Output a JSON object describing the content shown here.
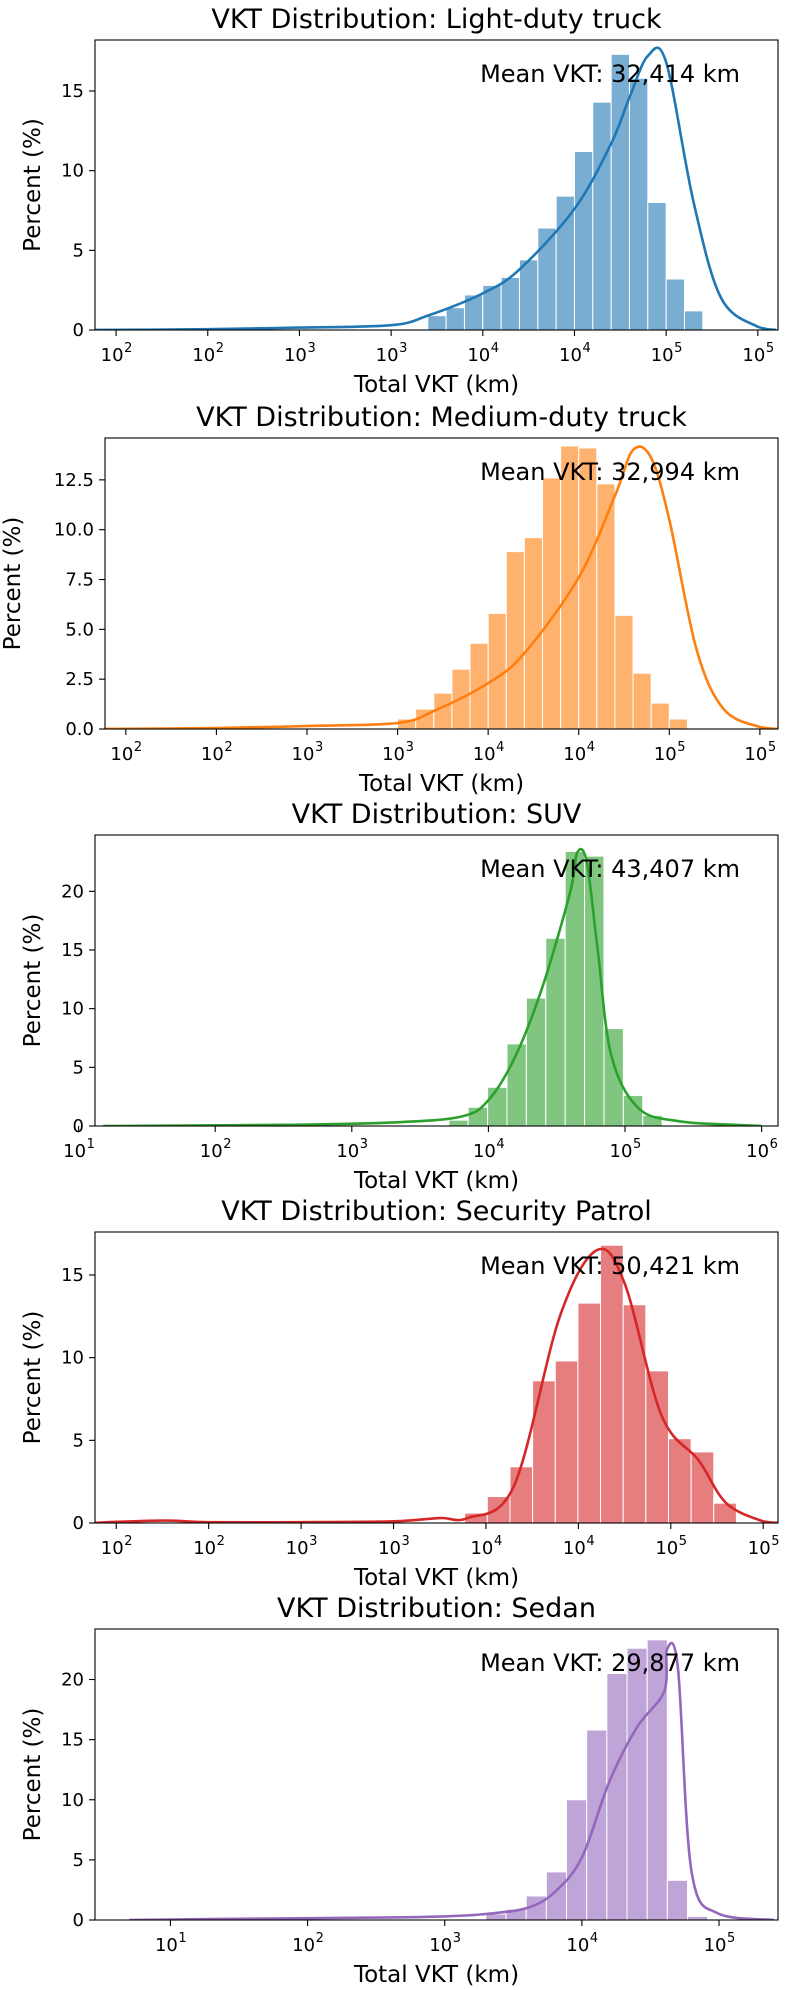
{
  "chart_data": [
    {
      "type": "bar",
      "title": "VKT Distribution: Light-duty truck",
      "xlabel": "Total VKT (km)",
      "ylabel": "Percent (%)",
      "annotation": "Mean VKT: 32,414 km",
      "color": "#1f77b4",
      "xlim": [
        -0.23,
        7.22
      ],
      "ylim": [
        0,
        18.2
      ],
      "yticks": [
        "0",
        "5",
        "10",
        "15"
      ],
      "ytick_values": [
        0,
        5,
        10,
        15
      ],
      "xticks": [
        {
          "base": "10",
          "exp": "2"
        },
        {
          "base": "10",
          "exp": "2"
        },
        {
          "base": "10",
          "exp": "3"
        },
        {
          "base": "10",
          "exp": "3"
        },
        {
          "base": "10",
          "exp": "4"
        },
        {
          "base": "10",
          "exp": "4"
        },
        {
          "base": "10",
          "exp": "5"
        },
        {
          "base": "10",
          "exp": "5"
        }
      ],
      "xtick_positions": [
        0,
        1,
        2,
        3,
        4,
        5,
        6,
        7
      ],
      "bins_start": 3.4,
      "bin_width": 0.2,
      "values": [
        0.9,
        1.4,
        2.2,
        2.8,
        3.3,
        4.4,
        6.4,
        8.4,
        11.2,
        14.3,
        17.3,
        15.8,
        8.0,
        3.2,
        1.2
      ],
      "kde_x": [
        -0.3,
        1,
        2,
        3,
        3.4,
        4,
        4.4,
        5,
        5.4,
        5.6,
        5.8,
        6,
        6.3,
        6.6,
        7,
        7.2
      ],
      "kde_y": [
        0,
        0.05,
        0.15,
        0.3,
        0.9,
        2.3,
        3.8,
        7.6,
        11.7,
        14.6,
        17.2,
        16.8,
        8.0,
        2.0,
        0.2,
        0
      ]
    },
    {
      "type": "bar",
      "title": "VKT Distribution: Medium-duty truck",
      "xlabel": "Total VKT (km)",
      "ylabel": "Percent (%)",
      "annotation": "Mean VKT: 32,994 km",
      "color": "#ff7f0e",
      "xlim": [
        -0.23,
        7.2
      ],
      "ylim": [
        0,
        14.6
      ],
      "yticks": [
        "0.0",
        "2.5",
        "5.0",
        "7.5",
        "10.0",
        "12.5"
      ],
      "ytick_values": [
        0,
        2.5,
        5,
        7.5,
        10,
        12.5
      ],
      "xticks": [
        {
          "base": "10",
          "exp": "2"
        },
        {
          "base": "10",
          "exp": "2"
        },
        {
          "base": "10",
          "exp": "3"
        },
        {
          "base": "10",
          "exp": "3"
        },
        {
          "base": "10",
          "exp": "4"
        },
        {
          "base": "10",
          "exp": "4"
        },
        {
          "base": "10",
          "exp": "5"
        },
        {
          "base": "10",
          "exp": "5"
        }
      ],
      "xtick_positions": [
        0,
        1,
        2,
        3,
        4,
        5,
        6,
        7
      ],
      "bins_start": 3.0,
      "bin_width": 0.2,
      "values": [
        0.5,
        1.0,
        1.8,
        3.0,
        4.3,
        5.8,
        8.9,
        9.6,
        12.6,
        14.2,
        14.1,
        12.3,
        5.7,
        2.8,
        1.3,
        0.5
      ],
      "kde_x": [
        -0.3,
        1,
        2,
        3,
        3.4,
        4,
        4.4,
        5,
        5.4,
        5.6,
        5.8,
        6,
        6.3,
        6.6,
        7,
        7.2
      ],
      "kde_y": [
        0,
        0.05,
        0.15,
        0.3,
        0.9,
        2.3,
        3.8,
        7.6,
        11.7,
        14.0,
        13.6,
        10.5,
        4.0,
        1.0,
        0.1,
        0
      ]
    },
    {
      "type": "bar",
      "title": "VKT Distribution: SUV",
      "xlabel": "Total VKT (km)",
      "ylabel": "Percent (%)",
      "annotation": "Mean VKT: 43,407 km",
      "color": "#2ca02c",
      "xlim": [
        1.12,
        6.12
      ],
      "ylim": [
        0,
        24.8
      ],
      "yticks": [
        "0",
        "5",
        "10",
        "15",
        "20"
      ],
      "ytick_values": [
        0,
        5,
        10,
        15,
        20
      ],
      "xticks": [
        {
          "base": "10",
          "exp": "1"
        },
        {
          "base": "10",
          "exp": "2"
        },
        {
          "base": "10",
          "exp": "3"
        },
        {
          "base": "10",
          "exp": "4"
        },
        {
          "base": "10",
          "exp": "5"
        },
        {
          "base": "10",
          "exp": "6"
        }
      ],
      "xtick_positions": [
        1,
        2,
        3,
        4,
        5,
        6
      ],
      "bins_start": 3.71,
      "bin_width": 0.142,
      "values": [
        0.5,
        1.6,
        3.3,
        7.0,
        10.9,
        16.0,
        23.4,
        23.0,
        8.3,
        2.6,
        0.9
      ],
      "kde_x": [
        1.18,
        2.5,
        3.3,
        3.8,
        4.0,
        4.2,
        4.4,
        4.6,
        4.65,
        4.72,
        4.8,
        4.9,
        5.1,
        5.4,
        5.8,
        6.0
      ],
      "kde_y": [
        0,
        0.1,
        0.3,
        0.8,
        2.2,
        6.0,
        12.0,
        20.0,
        23.3,
        22.5,
        15.0,
        6.0,
        1.5,
        0.4,
        0.1,
        0
      ]
    },
    {
      "type": "bar",
      "title": "VKT Distribution: Security Patrol",
      "xlabel": "Total VKT (km)",
      "ylabel": "Percent (%)",
      "annotation": "Mean VKT: 50,421 km",
      "color": "#d62728",
      "xlim": [
        -0.23,
        7.16
      ],
      "ylim": [
        0,
        17.6
      ],
      "yticks": [
        "0",
        "5",
        "10",
        "15"
      ],
      "ytick_values": [
        0,
        5,
        10,
        15
      ],
      "xticks": [
        {
          "base": "10",
          "exp": "2"
        },
        {
          "base": "10",
          "exp": "2"
        },
        {
          "base": "10",
          "exp": "3"
        },
        {
          "base": "10",
          "exp": "3"
        },
        {
          "base": "10",
          "exp": "4"
        },
        {
          "base": "10",
          "exp": "4"
        },
        {
          "base": "10",
          "exp": "5"
        },
        {
          "base": "10",
          "exp": "5"
        }
      ],
      "xtick_positions": [
        0,
        1,
        2,
        3,
        4,
        5,
        6,
        7
      ],
      "bins_start": 3.77,
      "bin_width": 0.245,
      "values": [
        0.6,
        1.6,
        3.4,
        8.6,
        9.8,
        13.3,
        16.8,
        13.2,
        9.2,
        5.1,
        4.3,
        1.2
      ],
      "kde_x": [
        -0.3,
        0.5,
        1,
        2,
        3,
        3.5,
        3.8,
        4.3,
        4.8,
        5.2,
        5.5,
        5.9,
        6.3,
        6.6,
        7.0,
        7.2
      ],
      "kde_y": [
        0,
        0.15,
        0.05,
        0.05,
        0.1,
        0.3,
        0.3,
        2.2,
        12.5,
        16.5,
        14.5,
        6.5,
        3.8,
        1.2,
        0.1,
        0
      ]
    },
    {
      "type": "bar",
      "title": "VKT Distribution: Sedan",
      "xlabel": "Total VKT (km)",
      "ylabel": "Percent (%)",
      "annotation": "Mean VKT: 29,877 km",
      "color": "#9467bd",
      "xlim": [
        0.45,
        5.43
      ],
      "ylim": [
        0,
        24.2
      ],
      "yticks": [
        "0",
        "5",
        "10",
        "15",
        "20"
      ],
      "ytick_values": [
        0,
        5,
        10,
        15,
        20
      ],
      "xticks": [
        {
          "base": "10",
          "exp": "1"
        },
        {
          "base": "10",
          "exp": "2"
        },
        {
          "base": "10",
          "exp": "3"
        },
        {
          "base": "10",
          "exp": "4"
        },
        {
          "base": "10",
          "exp": "5"
        }
      ],
      "xtick_positions": [
        1,
        2,
        3,
        4,
        5
      ],
      "bins_start": 3.3,
      "bin_width": 0.147,
      "values": [
        0.5,
        0.9,
        2.0,
        4.0,
        10.0,
        15.8,
        20.5,
        22.6,
        23.3,
        3.3,
        0.3
      ],
      "kde_x": [
        0.7,
        1.5,
        2.5,
        3.0,
        3.3,
        3.6,
        3.8,
        4.0,
        4.2,
        4.4,
        4.6,
        4.62,
        4.7,
        4.8,
        5.0,
        5.4
      ],
      "kde_y": [
        0,
        0.1,
        0.2,
        0.3,
        0.5,
        1.0,
        2.3,
        5.2,
        11.5,
        16.0,
        19.0,
        22.5,
        21.0,
        4.0,
        0.5,
        0
      ]
    }
  ]
}
